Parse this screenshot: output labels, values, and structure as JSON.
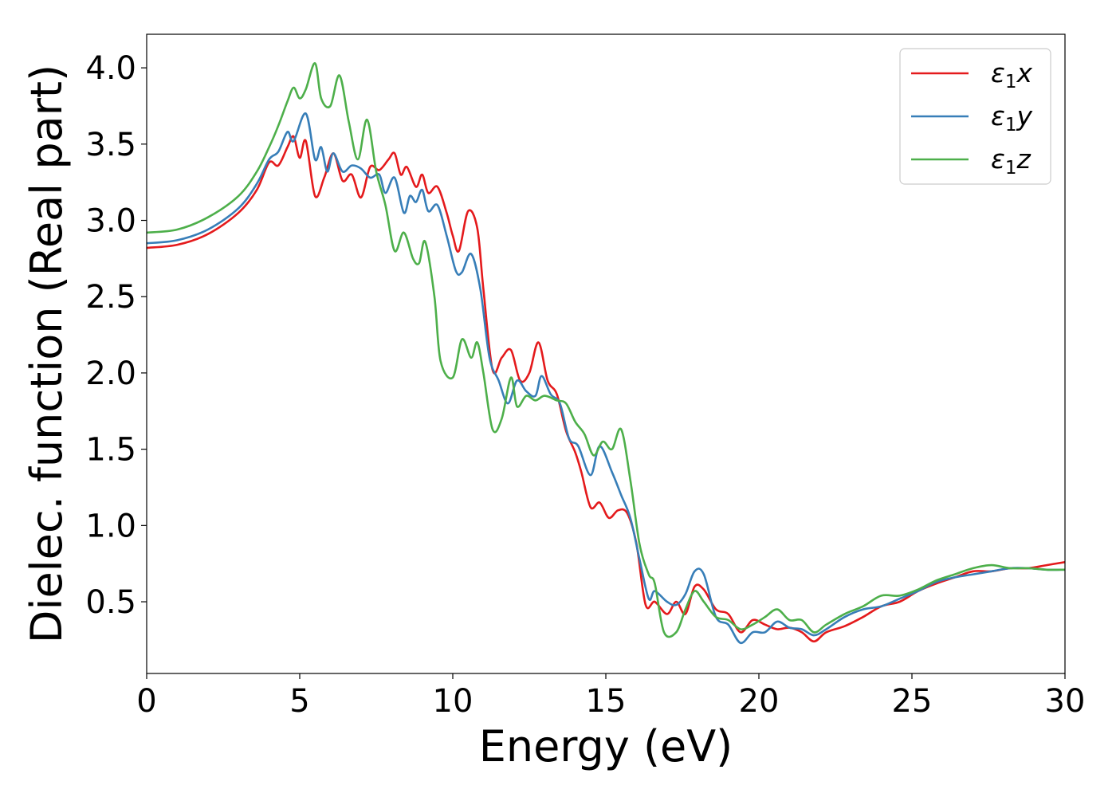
{
  "chart_data": {
    "type": "line",
    "title": "",
    "xlabel": "Energy (eV)",
    "ylabel": "Dielec. function (Real part)",
    "xlim": [
      0,
      30
    ],
    "ylim": [
      0.03,
      4.22
    ],
    "xticks": [
      0,
      5,
      10,
      15,
      20,
      25,
      30
    ],
    "xtick_labels": [
      "0",
      "5",
      "10",
      "15",
      "20",
      "25",
      "30"
    ],
    "yticks": [
      0.5,
      1.0,
      1.5,
      2.0,
      2.5,
      3.0,
      3.5,
      4.0
    ],
    "ytick_labels": [
      "0.5",
      "1.0",
      "1.5",
      "2.0",
      "2.5",
      "3.0",
      "3.5",
      "4.0"
    ],
    "grid": false,
    "legend_position": "top-right",
    "series": [
      {
        "name": "ε1x",
        "name_main": "ε",
        "name_sub": "1",
        "name_suffix": "x",
        "color": "#e41a1c",
        "points": [
          [
            0,
            2.82
          ],
          [
            1,
            2.84
          ],
          [
            2,
            2.91
          ],
          [
            3,
            3.05
          ],
          [
            3.6,
            3.2
          ],
          [
            4,
            3.38
          ],
          [
            4.3,
            3.36
          ],
          [
            4.6,
            3.48
          ],
          [
            4.8,
            3.55
          ],
          [
            5,
            3.41
          ],
          [
            5.2,
            3.52
          ],
          [
            5.5,
            3.16
          ],
          [
            5.8,
            3.28
          ],
          [
            6.1,
            3.44
          ],
          [
            6.4,
            3.26
          ],
          [
            6.7,
            3.3
          ],
          [
            7,
            3.15
          ],
          [
            7.3,
            3.35
          ],
          [
            7.6,
            3.33
          ],
          [
            7.9,
            3.4
          ],
          [
            8.1,
            3.44
          ],
          [
            8.3,
            3.3
          ],
          [
            8.5,
            3.35
          ],
          [
            8.8,
            3.22
          ],
          [
            9,
            3.3
          ],
          [
            9.2,
            3.18
          ],
          [
            9.5,
            3.22
          ],
          [
            9.8,
            3.05
          ],
          [
            10,
            2.9
          ],
          [
            10.2,
            2.8
          ],
          [
            10.5,
            3.06
          ],
          [
            10.8,
            2.95
          ],
          [
            11,
            2.55
          ],
          [
            11.3,
            2.02
          ],
          [
            11.6,
            2.1
          ],
          [
            11.9,
            2.15
          ],
          [
            12.2,
            1.95
          ],
          [
            12.5,
            2.0
          ],
          [
            12.8,
            2.2
          ],
          [
            13.1,
            1.95
          ],
          [
            13.4,
            1.86
          ],
          [
            13.7,
            1.62
          ],
          [
            14,
            1.48
          ],
          [
            14.2,
            1.35
          ],
          [
            14.5,
            1.12
          ],
          [
            14.8,
            1.15
          ],
          [
            15.1,
            1.05
          ],
          [
            15.4,
            1.1
          ],
          [
            15.7,
            1.08
          ],
          [
            16,
            0.88
          ],
          [
            16.3,
            0.48
          ],
          [
            16.6,
            0.5
          ],
          [
            17,
            0.42
          ],
          [
            17.3,
            0.5
          ],
          [
            17.6,
            0.42
          ],
          [
            17.9,
            0.6
          ],
          [
            18.2,
            0.58
          ],
          [
            18.6,
            0.45
          ],
          [
            19,
            0.42
          ],
          [
            19.4,
            0.3
          ],
          [
            19.8,
            0.38
          ],
          [
            20.2,
            0.35
          ],
          [
            20.6,
            0.32
          ],
          [
            21,
            0.33
          ],
          [
            21.4,
            0.3
          ],
          [
            21.8,
            0.24
          ],
          [
            22.2,
            0.3
          ],
          [
            22.8,
            0.34
          ],
          [
            23.4,
            0.4
          ],
          [
            24,
            0.47
          ],
          [
            24.6,
            0.5
          ],
          [
            25.2,
            0.57
          ],
          [
            25.8,
            0.62
          ],
          [
            26.4,
            0.66
          ],
          [
            27,
            0.7
          ],
          [
            27.6,
            0.7
          ],
          [
            28.2,
            0.72
          ],
          [
            28.8,
            0.72
          ],
          [
            29.4,
            0.74
          ],
          [
            30,
            0.76
          ]
        ]
      },
      {
        "name": "ε1y",
        "name_main": "ε",
        "name_sub": "1",
        "name_suffix": "y",
        "color": "#377eb8",
        "points": [
          [
            0,
            2.85
          ],
          [
            1,
            2.87
          ],
          [
            2,
            2.94
          ],
          [
            3,
            3.08
          ],
          [
            3.6,
            3.24
          ],
          [
            4,
            3.4
          ],
          [
            4.3,
            3.45
          ],
          [
            4.6,
            3.58
          ],
          [
            4.8,
            3.52
          ],
          [
            5.2,
            3.7
          ],
          [
            5.5,
            3.4
          ],
          [
            5.7,
            3.48
          ],
          [
            5.9,
            3.32
          ],
          [
            6.1,
            3.44
          ],
          [
            6.4,
            3.32
          ],
          [
            6.7,
            3.36
          ],
          [
            7,
            3.34
          ],
          [
            7.3,
            3.28
          ],
          [
            7.6,
            3.3
          ],
          [
            7.8,
            3.18
          ],
          [
            8.1,
            3.28
          ],
          [
            8.4,
            3.05
          ],
          [
            8.6,
            3.16
          ],
          [
            8.8,
            3.12
          ],
          [
            9,
            3.2
          ],
          [
            9.2,
            3.06
          ],
          [
            9.5,
            3.1
          ],
          [
            9.8,
            2.9
          ],
          [
            10.1,
            2.67
          ],
          [
            10.3,
            2.66
          ],
          [
            10.6,
            2.78
          ],
          [
            10.9,
            2.55
          ],
          [
            11.2,
            2.1
          ],
          [
            11.5,
            1.95
          ],
          [
            11.8,
            1.8
          ],
          [
            12.1,
            1.95
          ],
          [
            12.4,
            1.88
          ],
          [
            12.7,
            1.85
          ],
          [
            12.9,
            1.98
          ],
          [
            13.2,
            1.86
          ],
          [
            13.5,
            1.8
          ],
          [
            13.8,
            1.57
          ],
          [
            14.1,
            1.52
          ],
          [
            14.5,
            1.33
          ],
          [
            14.8,
            1.52
          ],
          [
            15.2,
            1.35
          ],
          [
            15.5,
            1.2
          ],
          [
            15.8,
            1.05
          ],
          [
            16.1,
            0.78
          ],
          [
            16.4,
            0.52
          ],
          [
            16.6,
            0.57
          ],
          [
            17,
            0.5
          ],
          [
            17.3,
            0.48
          ],
          [
            17.6,
            0.55
          ],
          [
            17.9,
            0.7
          ],
          [
            18.2,
            0.68
          ],
          [
            18.6,
            0.4
          ],
          [
            19,
            0.35
          ],
          [
            19.4,
            0.23
          ],
          [
            19.8,
            0.3
          ],
          [
            20.2,
            0.3
          ],
          [
            20.6,
            0.37
          ],
          [
            21,
            0.33
          ],
          [
            21.4,
            0.32
          ],
          [
            21.8,
            0.28
          ],
          [
            22.2,
            0.32
          ],
          [
            22.8,
            0.4
          ],
          [
            23.4,
            0.45
          ],
          [
            24,
            0.47
          ],
          [
            24.6,
            0.52
          ],
          [
            25.2,
            0.57
          ],
          [
            25.8,
            0.63
          ],
          [
            26.4,
            0.66
          ],
          [
            27,
            0.68
          ],
          [
            27.6,
            0.7
          ],
          [
            28.2,
            0.72
          ],
          [
            28.8,
            0.72
          ],
          [
            29.4,
            0.71
          ],
          [
            30,
            0.71
          ]
        ]
      },
      {
        "name": "ε1z",
        "name_main": "ε",
        "name_sub": "1",
        "name_suffix": "z",
        "color": "#4daf4a",
        "points": [
          [
            0,
            2.92
          ],
          [
            1,
            2.94
          ],
          [
            2,
            3.02
          ],
          [
            3,
            3.16
          ],
          [
            3.6,
            3.32
          ],
          [
            4,
            3.48
          ],
          [
            4.3,
            3.62
          ],
          [
            4.6,
            3.78
          ],
          [
            4.8,
            3.87
          ],
          [
            5,
            3.8
          ],
          [
            5.2,
            3.86
          ],
          [
            5.5,
            4.03
          ],
          [
            5.7,
            3.8
          ],
          [
            6,
            3.75
          ],
          [
            6.3,
            3.95
          ],
          [
            6.6,
            3.65
          ],
          [
            6.9,
            3.4
          ],
          [
            7.2,
            3.66
          ],
          [
            7.5,
            3.32
          ],
          [
            7.8,
            3.1
          ],
          [
            8.1,
            2.8
          ],
          [
            8.4,
            2.92
          ],
          [
            8.7,
            2.75
          ],
          [
            8.9,
            2.72
          ],
          [
            9.1,
            2.86
          ],
          [
            9.4,
            2.5
          ],
          [
            9.6,
            2.08
          ],
          [
            10,
            1.97
          ],
          [
            10.3,
            2.22
          ],
          [
            10.6,
            2.1
          ],
          [
            10.8,
            2.2
          ],
          [
            11,
            2.0
          ],
          [
            11.3,
            1.63
          ],
          [
            11.6,
            1.7
          ],
          [
            11.9,
            1.97
          ],
          [
            12.1,
            1.78
          ],
          [
            12.4,
            1.85
          ],
          [
            12.7,
            1.82
          ],
          [
            13,
            1.85
          ],
          [
            13.4,
            1.82
          ],
          [
            13.7,
            1.8
          ],
          [
            14,
            1.68
          ],
          [
            14.3,
            1.6
          ],
          [
            14.6,
            1.46
          ],
          [
            14.9,
            1.55
          ],
          [
            15.2,
            1.5
          ],
          [
            15.5,
            1.63
          ],
          [
            15.8,
            1.3
          ],
          [
            16.1,
            0.88
          ],
          [
            16.4,
            0.68
          ],
          [
            16.6,
            0.62
          ],
          [
            16.9,
            0.3
          ],
          [
            17.3,
            0.3
          ],
          [
            17.6,
            0.45
          ],
          [
            17.9,
            0.57
          ],
          [
            18.2,
            0.5
          ],
          [
            18.6,
            0.4
          ],
          [
            19,
            0.38
          ],
          [
            19.4,
            0.32
          ],
          [
            19.8,
            0.35
          ],
          [
            20.2,
            0.4
          ],
          [
            20.6,
            0.45
          ],
          [
            21,
            0.38
          ],
          [
            21.4,
            0.38
          ],
          [
            21.8,
            0.3
          ],
          [
            22.2,
            0.35
          ],
          [
            22.8,
            0.42
          ],
          [
            23.4,
            0.47
          ],
          [
            24,
            0.54
          ],
          [
            24.6,
            0.54
          ],
          [
            25.2,
            0.58
          ],
          [
            25.8,
            0.64
          ],
          [
            26.4,
            0.68
          ],
          [
            27,
            0.72
          ],
          [
            27.6,
            0.74
          ],
          [
            28.2,
            0.72
          ],
          [
            28.8,
            0.72
          ],
          [
            29.4,
            0.71
          ],
          [
            30,
            0.71
          ]
        ]
      }
    ]
  }
}
